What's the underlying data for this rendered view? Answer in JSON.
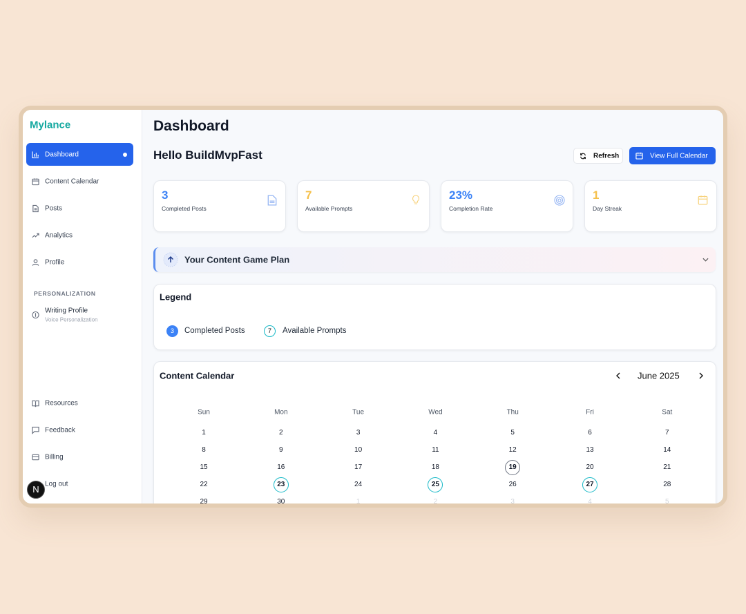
{
  "sidebar": {
    "brand": "Mylance",
    "nav": [
      "Dashboard",
      "Content Calendar",
      "Posts",
      "Analytics",
      "Profile"
    ],
    "section": "PERSONALIZATION",
    "writing_profile": {
      "title": "Writing Profile",
      "subtitle": "Voice Personalization"
    },
    "footer": [
      "Resources",
      "Feedback",
      "Billing",
      "Log out"
    ],
    "badge": "N"
  },
  "header": {
    "title": "Dashboard",
    "greeting": "Hello BuildMvpFast",
    "buttons": [
      "Refresh",
      "View Full Calendar"
    ]
  },
  "stats": [
    {
      "value": "3",
      "label": "Completed Posts"
    },
    {
      "value": "7",
      "label": "Available Prompts"
    },
    {
      "value": "23%",
      "label": "Completion Rate"
    },
    {
      "value": "1",
      "label": "Day Streak"
    }
  ],
  "game_plan": {
    "title": "Your Content Game Plan"
  },
  "legend": {
    "title": "Legend",
    "items": [
      {
        "count": "3",
        "label": "Completed Posts"
      },
      {
        "count": "7",
        "label": "Available Prompts"
      }
    ]
  },
  "calendar": {
    "title": "Content Calendar",
    "month": "June 2025",
    "weekdays": [
      "Sun",
      "Mon",
      "Tue",
      "Wed",
      "Thu",
      "Fri",
      "Sat"
    ],
    "weeks": [
      [
        1,
        2,
        3,
        4,
        5,
        6,
        7
      ],
      [
        8,
        9,
        10,
        11,
        12,
        13,
        14
      ],
      [
        15,
        16,
        17,
        18,
        19,
        20,
        21
      ],
      [
        22,
        23,
        24,
        25,
        26,
        27,
        28
      ],
      [
        29,
        30,
        1,
        2,
        3,
        4,
        5
      ]
    ]
  }
}
